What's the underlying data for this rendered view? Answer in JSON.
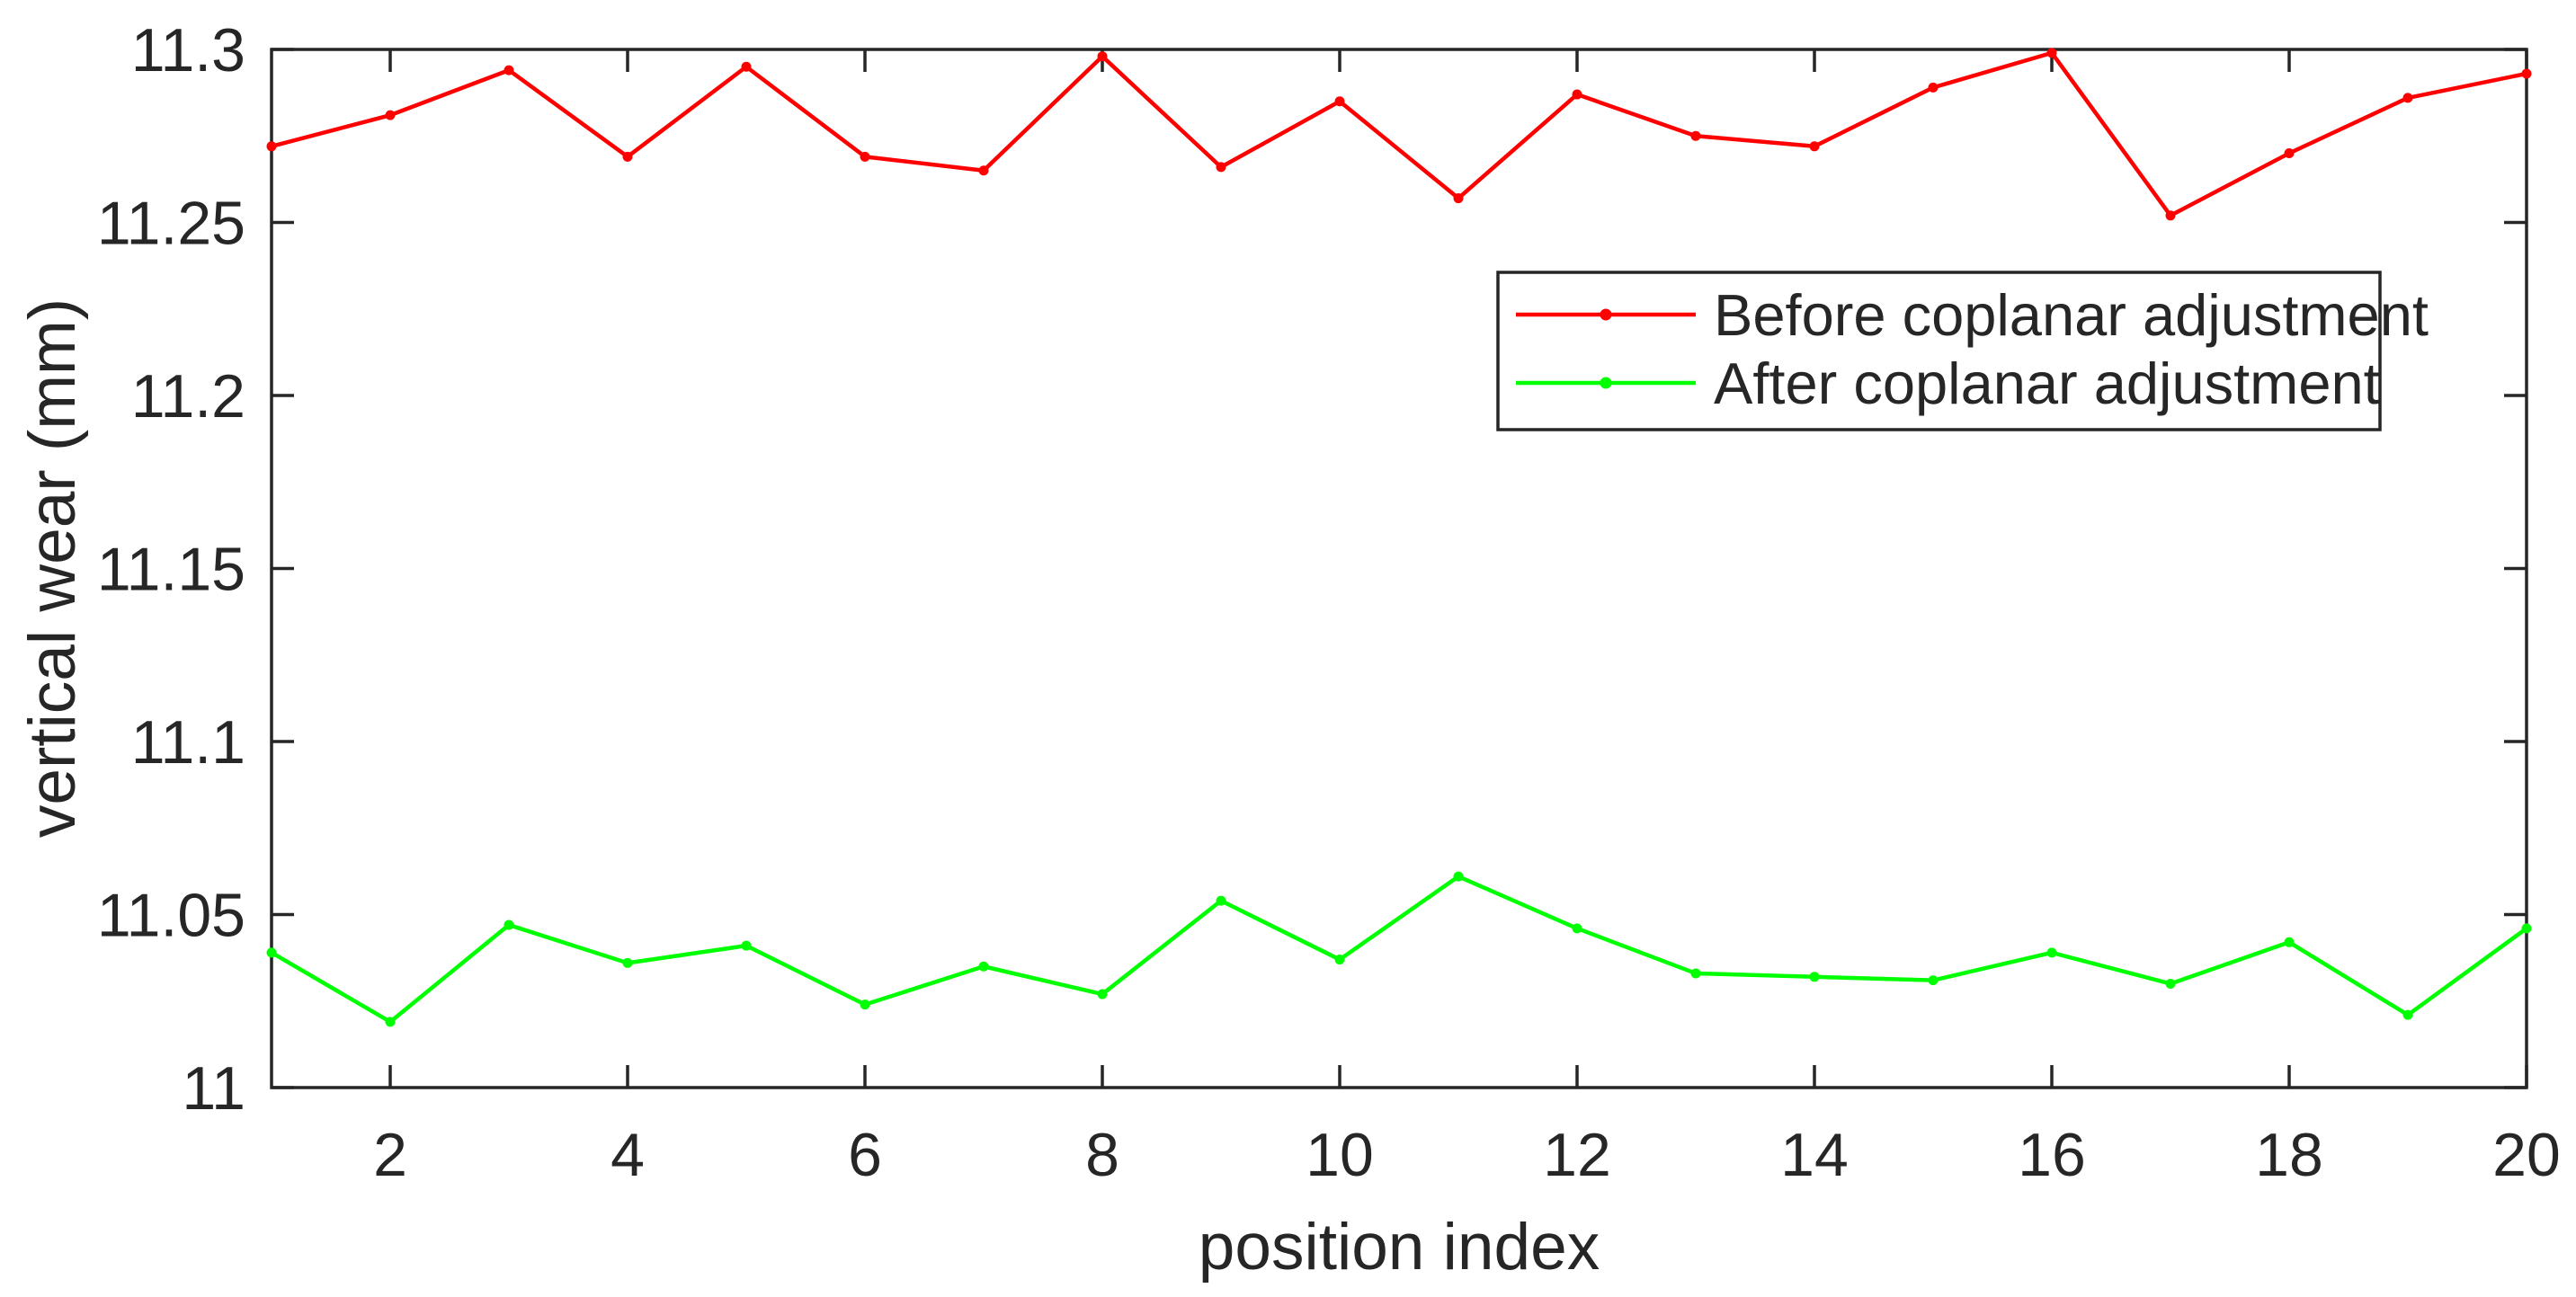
{
  "chart_data": {
    "type": "line",
    "title": "",
    "xlabel": "position index",
    "ylabel": "vertical wear (mm)",
    "xlim": [
      1,
      20
    ],
    "ylim": [
      11.0,
      11.3
    ],
    "grid": false,
    "background": "#ffffff",
    "axis_color": "#262626",
    "legend_position": "upper-right-inside",
    "x": [
      1,
      2,
      3,
      4,
      5,
      6,
      7,
      8,
      9,
      10,
      11,
      12,
      13,
      14,
      15,
      16,
      17,
      18,
      19,
      20
    ],
    "x_ticks": [
      "2",
      "4",
      "6",
      "8",
      "10",
      "12",
      "14",
      "16",
      "18",
      "20"
    ],
    "y_ticks": [
      {
        "value": 11.0,
        "label": "11"
      },
      {
        "value": 11.05,
        "label": "11.05"
      },
      {
        "value": 11.1,
        "label": "11.1"
      },
      {
        "value": 11.15,
        "label": "11.15"
      },
      {
        "value": 11.2,
        "label": "11.2"
      },
      {
        "value": 11.25,
        "label": "11.25"
      },
      {
        "value": 11.3,
        "label": "11.3"
      }
    ],
    "series": [
      {
        "name": "Before coplanar adjustment",
        "color": "#ff0000",
        "marker": "dot",
        "values": [
          11.272,
          11.281,
          11.294,
          11.269,
          11.295,
          11.269,
          11.265,
          11.298,
          11.266,
          11.285,
          11.257,
          11.287,
          11.275,
          11.272,
          11.289,
          11.299,
          11.252,
          11.27,
          11.286,
          11.293
        ]
      },
      {
        "name": "After coplanar adjustment",
        "color": "#00ff00",
        "marker": "dot",
        "values": [
          11.039,
          11.019,
          11.047,
          11.036,
          11.041,
          11.024,
          11.035,
          11.027,
          11.054,
          11.037,
          11.061,
          11.046,
          11.033,
          11.032,
          11.031,
          11.039,
          11.03,
          11.042,
          11.021,
          11.046
        ]
      }
    ]
  }
}
